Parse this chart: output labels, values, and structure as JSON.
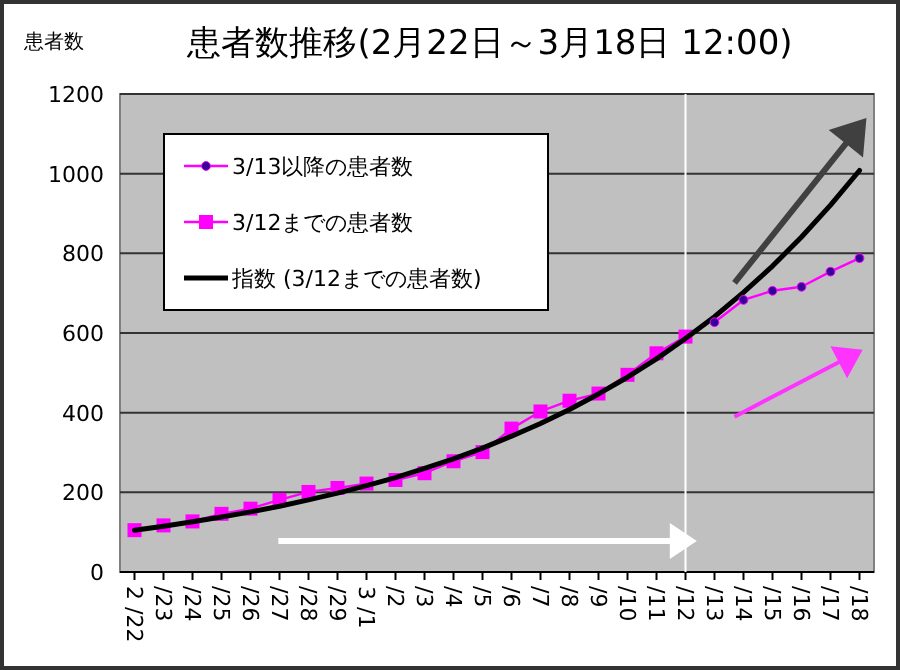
{
  "chart_data": {
    "type": "line",
    "title": "患者数推移(2月22日～3月18日 12:00)",
    "ylabel": "患者数",
    "categories": [
      "2 /22",
      "/23",
      "/24",
      "/25",
      "/26",
      "/27",
      "/28",
      "/29",
      "3 /1",
      "/2",
      "/3",
      "/4",
      "/5",
      "/6",
      "/7",
      "/8",
      "/9",
      "/10",
      "/11",
      "/12",
      "/13",
      "/14",
      "/15",
      "/16",
      "/17",
      "/18"
    ],
    "series": [
      {
        "name": "3/13以降の患者数",
        "color": "#ff00ff",
        "marker": "circle",
        "values": [
          null,
          null,
          null,
          null,
          null,
          null,
          null,
          null,
          null,
          null,
          null,
          null,
          null,
          null,
          null,
          null,
          null,
          null,
          null,
          null,
          627,
          683,
          706,
          716,
          754,
          788
        ]
      },
      {
        "name": "3/12までの患者数",
        "color": "#ff00ff",
        "marker": "square",
        "values": [
          105,
          117,
          127,
          146,
          159,
          181,
          201,
          211,
          222,
          231,
          248,
          278,
          301,
          360,
          403,
          430,
          448,
          495,
          549,
          591,
          null,
          null,
          null,
          null,
          null,
          null
        ]
      },
      {
        "name": "指数 (3/12までの患者数)",
        "color": "#000000",
        "marker": "none",
        "values": [
          105,
          115,
          126,
          138,
          151,
          165,
          181,
          198,
          217,
          237,
          260,
          284,
          311,
          341,
          373,
          408,
          447,
          489,
          535,
          586,
          641,
          702,
          768,
          841,
          921,
          1008
        ]
      }
    ],
    "ylim": [
      0,
      1200
    ],
    "yticks": [
      0,
      200,
      400,
      600,
      800,
      1000,
      1200
    ],
    "grid": "y",
    "legend": "top left",
    "ref_lines": [
      {
        "axis": "x",
        "value": "/12",
        "color": "#ffffff"
      }
    ]
  }
}
